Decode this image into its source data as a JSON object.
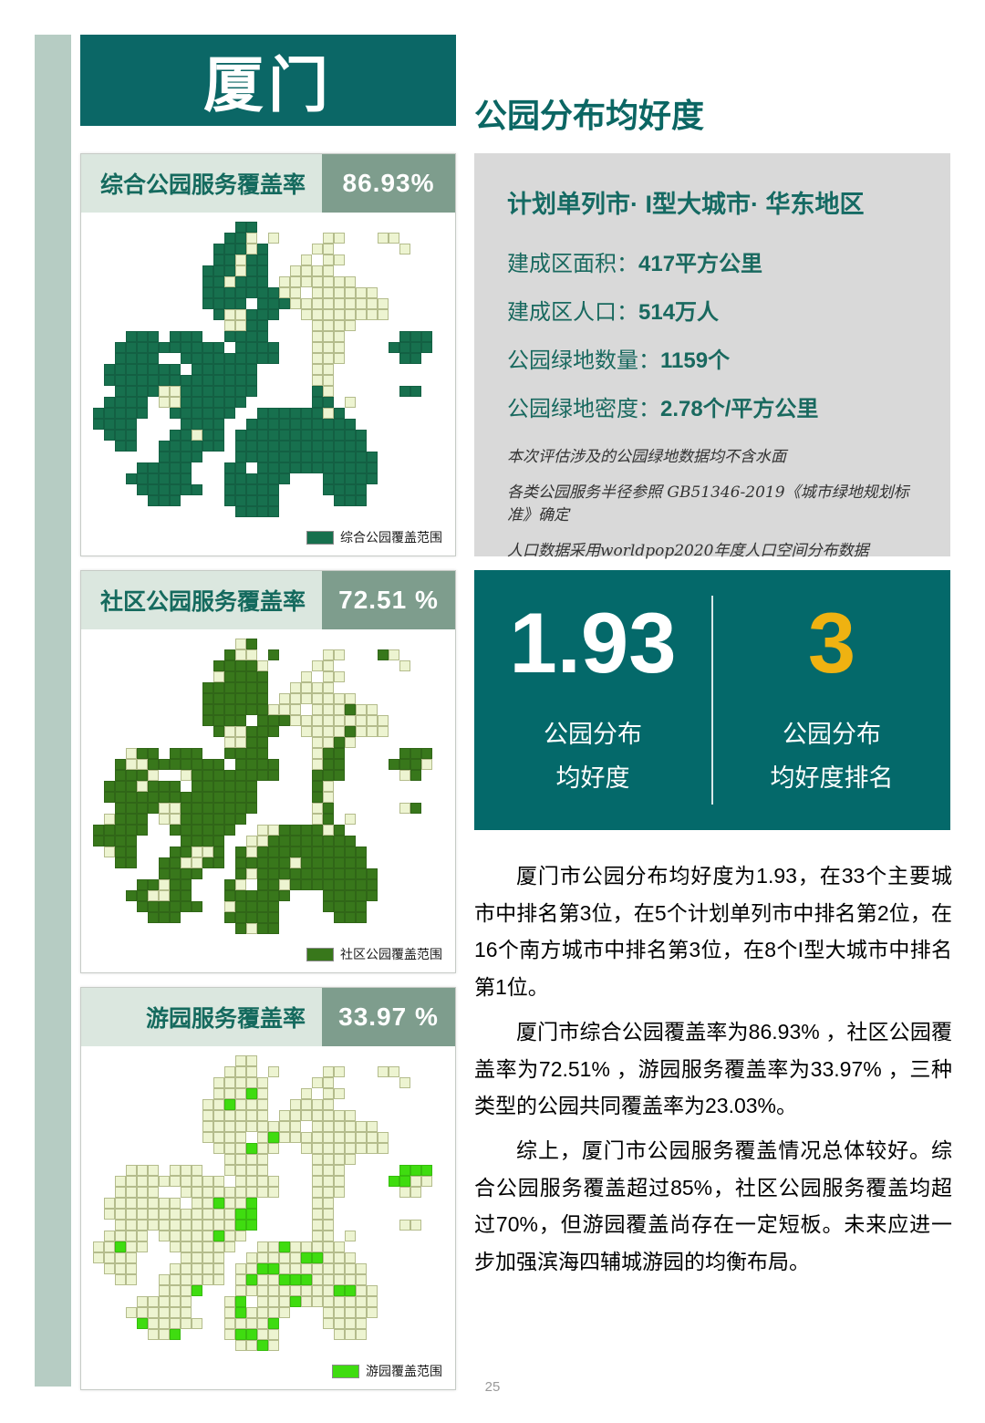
{
  "city": "厦门",
  "page_number": "25",
  "right": {
    "title": "公园分布均好度",
    "info_box": {
      "header": "计划单列市· I型大城市· 华东地区",
      "stats": [
        {
          "label": "建成区面积：",
          "value": "417平方公里"
        },
        {
          "label": "建成区人口：",
          "value": "514万人"
        },
        {
          "label": "公园绿地数量：",
          "value": "1159个"
        },
        {
          "label": "公园绿地密度：",
          "value": "2.78个/平方公里"
        }
      ],
      "notes": [
        "本次评估涉及的公园绿地数据均不含水面",
        "各类公园服务半径参照 GB51346-2019《城市绿地规划标准》确定",
        "人口数据采用worldpop2020年度人口空间分布数据"
      ]
    },
    "score_box": {
      "score": "1.93",
      "score_label_lines": [
        "公园分布",
        "均好度"
      ],
      "rank": "3",
      "rank_label_lines": [
        "公园分布",
        "均好度排名"
      ],
      "accent_color": "#EFB211"
    },
    "paragraphs": [
      "厦门市公园分布均好度为1.93，在33个主要城市中排名第3位，在5个计划单列市中排名第2位，在16个南方城市中排名第3位，在8个I型大城市中排名第1位。",
      "厦门市综合公园覆盖率为86.93% ，社区公园覆盖率为72.51% ，游园服务覆盖率为33.97% ，三种类型的公园共同覆盖率为23.03%。",
      "综上，厦门市公园服务覆盖情况总体较好。综合公园服务覆盖超过85%，社区公园服务覆盖均超过70%，但游园覆盖尚存在一定短板。未来应进一步加强滨海四辅城游园的均衡布局。"
    ]
  },
  "panels": [
    {
      "title": "综合公园服务覆盖率",
      "value": "86.93%",
      "legend": "综合公园覆盖范围",
      "covered_color": "#17704E",
      "uncovered_color": "#EDF4D1",
      "grid": [
        ".............cc.................",
        "............ccu.u....uu...uu....",
        "...........cccuc....uu......u...",
        "...........ccucc...u.uu.........",
        "..........cccucc..uuuu..........",
        "..........ccuccc.uuuuuuu........",
        "..........cccccccuu.uuuuuu......",
        "..........cccc.cccuuuuuuuuu.....",
        "...........cuuccc..uuuuuuuu.....",
        "............uucc....uuuu........",
        "...ccc.ccc..cccc....uuu.....ccc.",
        "..cccccccccc.cccc...uuu....cccc.",
        "..cccc..ccccccccc...uuu.....cc..",
        ".ccccccc.cccccc.....uu..........",
        ".cccccccccccccc.....uu..........",
        "..ccccuuccccccc.....cu......cc..",
        ".cccc.uucccccc......cc.u........",
        "ccccc..cccccc..ccccccuc.........",
        "cccc....cccc..cccccccccc........",
        ".ccc...ccucc.cccccccccccc.......",
        "..cc..cccccc.cccccccccccc.......",
        "......cccc...ccccccccccccc......",
        "....ccccc...cc.ccccccccccc......",
        "...cccccc...cccccc...ccccc......",
        "....cccccc..ccccc....cccc.......",
        ".....ccc....ccccc.....ccc.......",
        ".............cccc..............."
      ]
    },
    {
      "title": "社区公园服务覆盖率",
      "value": "72.51 %",
      "legend": "社区公园覆盖范围",
      "covered_color": "#38771B",
      "uncovered_color": "#EDF4D1",
      "grid": [
        ".............uc.................",
        "............cuu.c....uu...cu....",
        "...........ccccu....uu......u...",
        "...........ucccc...u.uu.........",
        "..........cccccc..uuuu..........",
        "..........cccccc.uuuuuuu........",
        "..........ccccccuuu.uuucuu......",
        "..........cccc.cccuuuuuuuuu.....",
        "...........cuuccc..uuuucuuu.....",
        "............uucc....uucu........",
        "...ucc.ccc..cccc....ucc.....ccc.",
        "..cuuccccccc.cccc...ucc....cccu.",
        "..cccu..ucccccccc...ccc.....uc..",
        ".cccuccc.cccccc.....cu..........",
        ".cccccccccccccc.....cu..........",
        "..ccccuuccccccc.....uc......uc..",
        ".uccc.uucccccc......uc.u........",
        "ccccc..cccccc..uuccccuc.........",
        "cccc....cccc..uucccccccc........",
        ".ucc...ccuuc.cucccccccccc.......",
        "..cc..ccuucc.cccccucccccc.......",
        "......cccc...cuccccccccccc......",
        "....ccucc...cu.ccucccccccc......",
        "...ccuucc...cccccc...ccccc......",
        "....cccccc..ucccc....cccc.......",
        ".....ccc....ccccc.....ccc.......",
        ".............cucc..............."
      ]
    },
    {
      "title": "游园服务覆盖率",
      "value": "33.97 %",
      "legend": "游园覆盖范围",
      "covered_color": "#3FDC10",
      "uncovered_color": "#EDF4D1",
      "grid": [
        ".............uu.................",
        "............uuu.u....uu...uu....",
        "...........uuuuu....uu......u...",
        "...........uuucu...u.uu.........",
        "..........uucuuu..uuuu..........",
        "..........uuuuuu.uuuuuuu........",
        "..........uuuuuuuuu.uuuuuu......",
        "..........uuuu.ucuuuuuuuuuu.....",
        "...........uuucuu..uuuuuuuu.....",
        "............uuuu....uuuu........",
        "...uuu.uuu..uuuu....uuu.....ccc.",
        "..uuuuuuuuuu.uuuu...uuu....ccuu.",
        "..uuuu..uuuuuuuuu...uuu.....uu..",
        ".uuuuuuu.uucuuc.....uu..........",
        ".uuuuuuuuuuuucc.....uu..........",
        "..uuuuuuuuuuucc.....uu......uu..",
        ".uuuu.uuuuucuu......uu.u........",
        "uucuu..uuuuuu..uucuuuuu.........",
        "uuuu....uuuu..uuuuuccuuu........",
        ".uuu...uuuuu.uuccuuuuuuuu.......",
        "..uu..uuuuuu.ucuucccuuuuu.......",
        "......uuuc...uuuuuuuuuccuu......",
        "....uuuuu...uc.uuucuuuuuuu......",
        "...uuuuuu...ucuuuu...uuuuu......",
        "....cuuuuu..uuuuc....uuuu.......",
        ".....uuc....uccuu.....uuu.......",
        ".............uucu..............."
      ]
    }
  ],
  "chart_data": [
    {
      "type": "heatmap",
      "title": "综合公园服务覆盖率",
      "coverage_percent": 86.93,
      "legend": "综合公园覆盖范围"
    },
    {
      "type": "heatmap",
      "title": "社区公园服务覆盖率",
      "coverage_percent": 72.51,
      "legend": "社区公园覆盖范围"
    },
    {
      "type": "heatmap",
      "title": "游园服务覆盖率",
      "coverage_percent": 33.97,
      "legend": "游园覆盖范围"
    }
  ]
}
